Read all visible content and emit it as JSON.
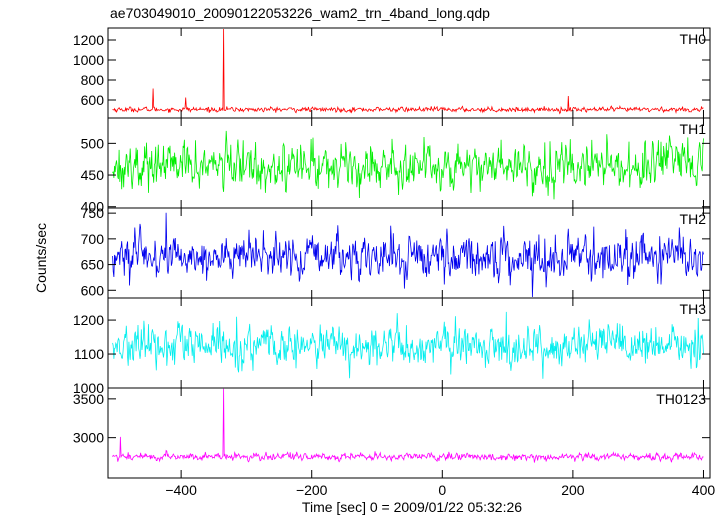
{
  "chart_data": {
    "type": "line",
    "title": "ae703049010_20090122053226_wam2_trn_4band_long.qdp",
    "xlabel": "Time [sec] 0 = 2009/01/22 05:32:26",
    "ylabel": "Counts/sec",
    "xlim": [
      -512,
      410
    ],
    "x_ticks": [
      -400,
      -200,
      0,
      200,
      400
    ],
    "x_tick_labels": [
      "−400",
      "−200",
      "0",
      "200",
      "400"
    ],
    "x_range_data": [
      -505,
      400
    ],
    "time_step_sec": 1,
    "panels": [
      {
        "label": "TH0",
        "color": "#ff0000",
        "ylim": [
          420,
          1320
        ],
        "y_ticks": [
          600,
          800,
          1000,
          1200
        ],
        "y_tick_labels": [
          "600",
          "800",
          "1000",
          "1200"
        ],
        "baseline": 505,
        "noise": 14,
        "spikes": [
          {
            "x": -335,
            "y": 1310
          },
          {
            "x": -443,
            "y": 715
          },
          {
            "x": -393,
            "y": 625
          },
          {
            "x": 193,
            "y": 640
          }
        ]
      },
      {
        "label": "TH1",
        "color": "#00ee00",
        "ylim": [
          398,
          540
        ],
        "y_ticks": [
          400,
          450,
          500
        ],
        "y_tick_labels": [
          "400",
          "450",
          "500"
        ],
        "baseline": 465,
        "noise": 21,
        "spikes": []
      },
      {
        "label": "TH2",
        "color": "#0000ee",
        "ylim": [
          585,
          760
        ],
        "y_ticks": [
          600,
          650,
          700,
          750
        ],
        "y_tick_labels": [
          "600",
          "650",
          "700",
          "750"
        ],
        "baseline": 665,
        "noise": 24,
        "spikes": []
      },
      {
        "label": "TH3",
        "color": "#00eeee",
        "ylim": [
          1000,
          1265
        ],
        "y_ticks": [
          1000,
          1100,
          1200
        ],
        "y_tick_labels": [
          "1000",
          "1100",
          "1200"
        ],
        "baseline": 1122,
        "noise": 35,
        "spikes": []
      },
      {
        "label": "TH0123",
        "color": "#ff00ff",
        "ylim": [
          2480,
          3640
        ],
        "y_ticks": [
          3000,
          3500
        ],
        "y_tick_labels": [
          "3000",
          "3500"
        ],
        "baseline": 2755,
        "noise": 28,
        "spikes": [
          {
            "x": -335,
            "y": 3630
          },
          {
            "x": -493,
            "y": 3010
          }
        ]
      }
    ]
  }
}
